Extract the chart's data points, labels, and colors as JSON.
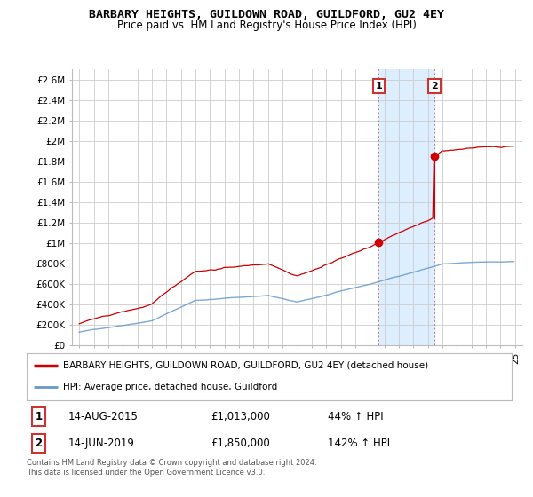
{
  "title": "BARBARY HEIGHTS, GUILDOWN ROAD, GUILDFORD, GU2 4EY",
  "subtitle": "Price paid vs. HM Land Registry's House Price Index (HPI)",
  "legend_line1": "BARBARY HEIGHTS, GUILDOWN ROAD, GUILDFORD, GU2 4EY (detached house)",
  "legend_line2": "HPI: Average price, detached house, Guildford",
  "annotation1_date": "14-AUG-2015",
  "annotation1_price": "£1,013,000",
  "annotation1_hpi": "44% ↑ HPI",
  "annotation1_year": 2015.62,
  "annotation1_value": 1013000,
  "annotation2_date": "14-JUN-2019",
  "annotation2_price": "£1,850,000",
  "annotation2_hpi": "142% ↑ HPI",
  "annotation2_year": 2019.45,
  "annotation2_value": 1850000,
  "footnote1": "Contains HM Land Registry data © Crown copyright and database right 2024.",
  "footnote2": "This data is licensed under the Open Government Licence v3.0.",
  "ylim": [
    0,
    2700000
  ],
  "yticks": [
    0,
    200000,
    400000,
    600000,
    800000,
    1000000,
    1200000,
    1400000,
    1600000,
    1800000,
    2000000,
    2200000,
    2400000,
    2600000
  ],
  "ytick_labels": [
    "£0",
    "£200K",
    "£400K",
    "£600K",
    "£800K",
    "£1M",
    "£1.2M",
    "£1.4M",
    "£1.6M",
    "£1.8M",
    "£2M",
    "£2.2M",
    "£2.4M",
    "£2.6M"
  ],
  "xlim_start": 1994.5,
  "xlim_end": 2025.5,
  "red_color": "#cc0000",
  "blue_color": "#6699cc",
  "shade_color": "#ddeeff",
  "dashed_color": "#cc3333",
  "background_color": "#ffffff",
  "grid_color": "#cccccc"
}
